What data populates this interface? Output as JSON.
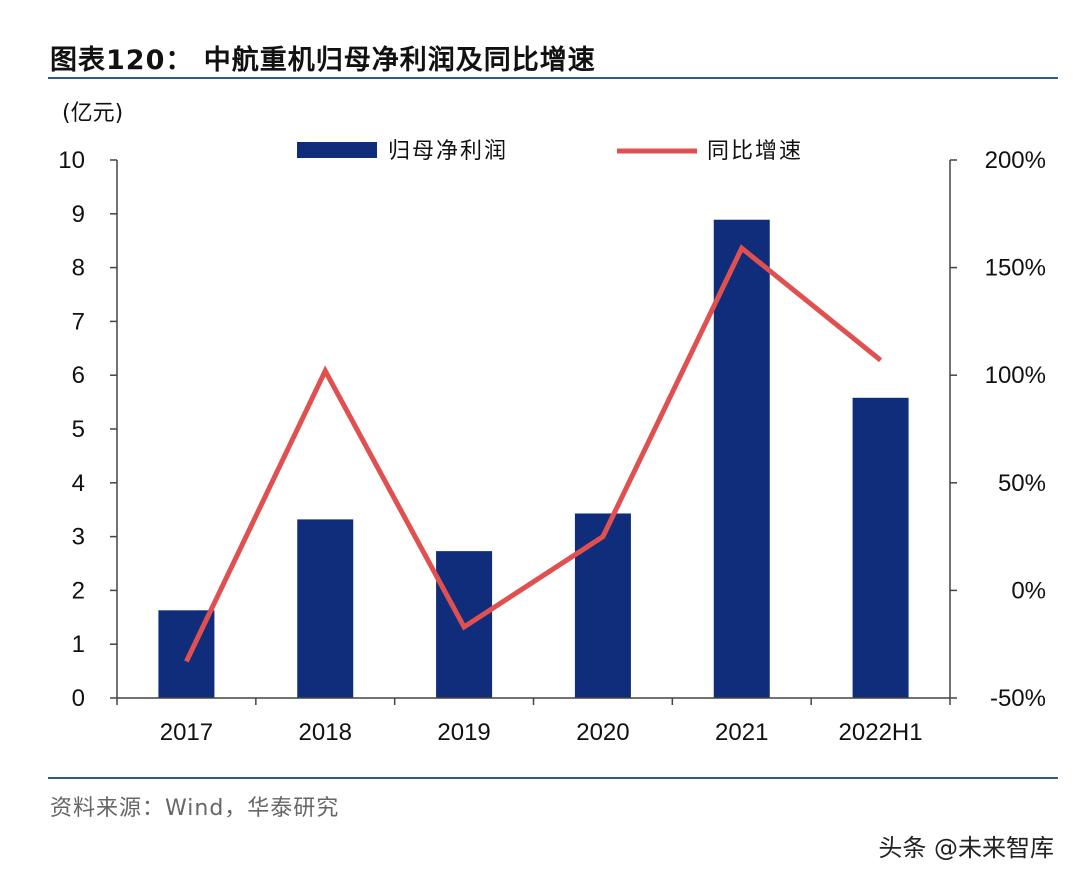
{
  "header": {
    "title": "图表120： 中航重机归母净利润及同比增速"
  },
  "footer": {
    "source": "资料来源：Wind，华泰研究",
    "watermark": "头条 @未来智库"
  },
  "colors": {
    "bar": "#0f2d7a",
    "line": "#e05050",
    "axis": "#444444"
  },
  "chart_data": {
    "type": "bar",
    "title": "中航重机归母净利润及同比增速",
    "ylabel": "(亿元)",
    "categories": [
      "2017",
      "2018",
      "2019",
      "2020",
      "2021",
      "2022H1"
    ],
    "ylim": [
      0,
      10
    ],
    "y2lim": [
      -50,
      200
    ],
    "yticks": [
      "0",
      "1",
      "2",
      "3",
      "4",
      "5",
      "6",
      "7",
      "8",
      "9",
      "10"
    ],
    "y2ticks": [
      "-50%",
      "0%",
      "50%",
      "100%",
      "150%",
      "200%"
    ],
    "series": [
      {
        "name": "归母净利润",
        "type": "bar",
        "axis": "left",
        "values": [
          1.63,
          3.32,
          2.73,
          3.43,
          8.89,
          5.58
        ]
      },
      {
        "name": "同比增速",
        "type": "line",
        "axis": "right",
        "values": [
          -33,
          102,
          -17,
          25,
          159,
          107
        ]
      }
    ],
    "legend": "top"
  }
}
